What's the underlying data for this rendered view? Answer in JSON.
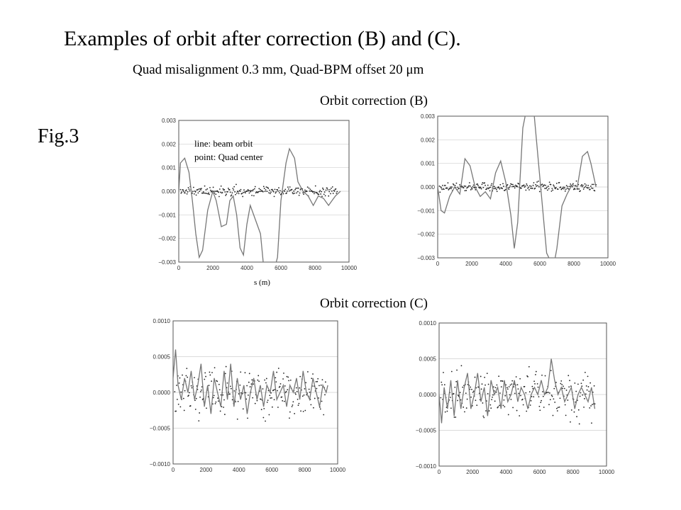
{
  "title": "Examples of orbit after correction (B) and (C).",
  "subtitle": "Quad misalignment 0.3 mm, Quad-BPM offset 20 μm",
  "fig_label": "Fig.3",
  "section_b": "Orbit correction (B)",
  "section_c": "Orbit correction (C)",
  "legend_line": "line: beam orbit",
  "legend_point": "point: Quad center",
  "x_axis_label": "s (m)",
  "chart_data": [
    {
      "id": "B1",
      "type": "line",
      "ylim": [
        -0.003,
        0.003
      ],
      "xlim": [
        0,
        10000
      ],
      "yticks": [
        "0.003",
        "0.002",
        "0.001",
        "0.000",
        "−0.001",
        "−0.002",
        "−0.003"
      ],
      "xticks": [
        "0",
        "2000",
        "4000",
        "6000",
        "8000",
        "10000"
      ],
      "series": [
        {
          "x": [
            0,
            100,
            350,
            600,
            800,
            1000,
            1200,
            1400,
            1700,
            2000,
            2200,
            2500,
            2800,
            3000,
            3200,
            3400,
            3600,
            3800,
            4000,
            4200,
            4500,
            4800,
            5000,
            5200,
            5500,
            5800,
            6000,
            6300,
            6500,
            6800,
            7000,
            7300,
            7600,
            7900,
            8200,
            8500,
            8800,
            9000,
            9200,
            9500
          ],
          "y": [
            0.0,
            0.0012,
            0.0014,
            0.0008,
            -0.0004,
            -0.0018,
            -0.0028,
            -0.0025,
            -0.0008,
            0.0,
            -0.0004,
            -0.0015,
            -0.0014,
            -0.0004,
            -0.0002,
            -0.001,
            -0.0024,
            -0.0027,
            -0.0014,
            -0.0006,
            -0.0012,
            -0.0018,
            -0.0033,
            -0.0034,
            -0.0036,
            -0.0028,
            -0.0004,
            0.0012,
            0.0018,
            0.0014,
            0.0004,
            0.0,
            -0.0002,
            -0.0006,
            -0.0002,
            -0.0003,
            -0.0006,
            -0.0004,
            -0.0002,
            0.0
          ]
        }
      ],
      "point_amplitude": 0.0003
    },
    {
      "id": "B2",
      "type": "line",
      "ylim": [
        -0.003,
        0.003
      ],
      "xlim": [
        0,
        10000
      ],
      "yticks": [
        "0.003",
        "0.002",
        "0.001",
        "0.000",
        "−0.001",
        "−0.002",
        "−0.003"
      ],
      "xticks": [
        "0",
        "2000",
        "4000",
        "6000",
        "8000",
        "10000"
      ],
      "series": [
        {
          "x": [
            0,
            200,
            400,
            700,
            1000,
            1300,
            1600,
            1900,
            2200,
            2500,
            2800,
            3100,
            3400,
            3700,
            4000,
            4300,
            4500,
            4700,
            5000,
            5300,
            5600,
            6000,
            6400,
            6800,
            7000,
            7300,
            7600,
            7900,
            8200,
            8500,
            8800,
            9000,
            9300
          ],
          "y": [
            0.0,
            -0.001,
            -0.0011,
            -0.0004,
            0.0,
            -0.0003,
            0.0012,
            0.0009,
            0.0,
            -0.0004,
            -0.0002,
            -0.0005,
            0.0006,
            0.0011,
            0.0002,
            -0.0012,
            -0.0026,
            -0.0015,
            0.0025,
            0.0036,
            0.0036,
            0.0004,
            -0.0028,
            -0.0034,
            -0.0026,
            -0.0008,
            -0.0003,
            0.0001,
            0.0,
            0.0013,
            0.0015,
            0.001,
            0.0
          ]
        }
      ],
      "point_amplitude": 0.0003
    },
    {
      "id": "C1",
      "type": "line",
      "ylim": [
        -0.001,
        0.001
      ],
      "xlim": [
        0,
        10000
      ],
      "yticks": [
        "0.0010",
        "0.0005",
        "0.0000",
        "−0.0005",
        "−0.0010"
      ],
      "xticks": [
        "0",
        "2000",
        "4000",
        "6000",
        "8000",
        "10000"
      ],
      "series": [
        {
          "x": [
            0,
            150,
            300,
            500,
            700,
            900,
            1100,
            1300,
            1500,
            1700,
            1900,
            2100,
            2300,
            2500,
            2700,
            2900,
            3100,
            3300,
            3500,
            3700,
            3900,
            4100,
            4300,
            4500,
            4700,
            4900,
            5100,
            5300,
            5500,
            5700,
            5900,
            6100,
            6300,
            6500,
            6700,
            6900,
            7100,
            7300,
            7500,
            7700,
            7900,
            8100,
            8300,
            8500,
            8700,
            8900,
            9100,
            9300,
            9400
          ],
          "y": [
            0.0002,
            0.0006,
            0.0001,
            -0.0001,
            0.0002,
            0.0,
            0.0003,
            -0.0001,
            0.0001,
            0.0004,
            -0.0002,
            0.0001,
            -0.0003,
            0.0002,
            0.0,
            -0.0002,
            0.0003,
            -0.0001,
            0.0004,
            -0.0002,
            0.0002,
            -0.0001,
            0.0001,
            -0.0003,
            0.0,
            0.0002,
            -0.0001,
            0.0001,
            -0.0002,
            0.0001,
            0.0,
            0.0003,
            -0.0001,
            0.0,
            0.0001,
            -0.0002,
            0.0001,
            0.0,
            0.0002,
            -0.0001,
            0.0003,
            0.0,
            -0.0001,
            0.0002,
            0.0,
            -0.0002,
            0.0001,
            0.0,
            0.0001
          ]
        }
      ],
      "point_amplitude": 0.0005
    },
    {
      "id": "C2",
      "type": "line",
      "ylim": [
        -0.001,
        0.001
      ],
      "xlim": [
        0,
        10000
      ],
      "yticks": [
        "0.0010",
        "0.0005",
        "0.0000",
        "−0.0005",
        "−0.0010"
      ],
      "xticks": [
        "0",
        "2000",
        "4000",
        "6000",
        "8000",
        "10000"
      ],
      "series": [
        {
          "x": [
            0,
            150,
            300,
            500,
            700,
            900,
            1100,
            1300,
            1500,
            1700,
            1900,
            2100,
            2300,
            2500,
            2700,
            2900,
            3100,
            3300,
            3500,
            3700,
            3900,
            4100,
            4300,
            4500,
            4700,
            4900,
            5100,
            5300,
            5500,
            5700,
            5900,
            6100,
            6300,
            6500,
            6700,
            6900,
            7100,
            7300,
            7500,
            7700,
            7900,
            8100,
            8300,
            8500,
            8700,
            8900,
            9100,
            9300
          ],
          "y": [
            0.0,
            -0.0004,
            0.0001,
            -0.0002,
            0.0002,
            -0.0003,
            0.0002,
            -0.0002,
            0.0001,
            0.0003,
            -0.0002,
            0.0,
            0.0003,
            -0.0001,
            0.0001,
            -0.0003,
            0.0002,
            0.0,
            0.0001,
            -0.0002,
            0.0002,
            -0.0001,
            0.0,
            0.0002,
            -0.0001,
            0.0001,
            0.0,
            -0.0002,
            0.0,
            0.0001,
            0.0,
            0.0002,
            0.0,
            0.0001,
            0.0005,
            0.0002,
            0.0,
            0.0001,
            -0.0001,
            0.0,
            0.0001,
            -0.0002,
            0.0,
            0.0001,
            0.0,
            -0.0001,
            0.0001,
            -0.0002
          ]
        }
      ],
      "point_amplitude": 0.0005
    }
  ]
}
